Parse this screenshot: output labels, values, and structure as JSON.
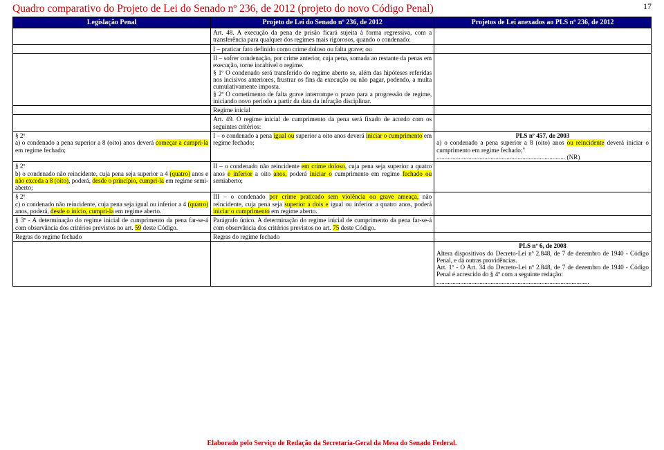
{
  "page_number": "17",
  "doc_title": "Quadro comparativo do Projeto de Lei do Senado nº 236, de 2012 (projeto do novo Código Penal)",
  "footer": "Elaborado pelo Serviço de Redação da Secretaria-Geral da Mesa do Senado Federal.",
  "colors": {
    "title": "#c00000",
    "header_bg": "#000080",
    "header_fg": "#ffffff",
    "highlight": "#ffff00",
    "border": "#000000",
    "text": "#000000",
    "background": "#ffffff"
  },
  "columns": {
    "widths_pct": [
      31,
      35,
      34
    ],
    "headers": [
      "Legislação Penal",
      "Projeto de Lei do Senado nº 236, de 2012",
      "Projetos de Lei anexados ao PLS nº 236, de 2012"
    ]
  },
  "rows": [
    {
      "c1": "",
      "c2": "Art. 48. A execução da pena de prisão ficará sujeita à forma regressiva, com a transferência para qualquer dos regimes mais rigorosos, quando o condenado:",
      "c3": ""
    },
    {
      "c1": "",
      "c2": "I – praticar fato definido como crime doloso ou falta grave; ou",
      "c3": ""
    },
    {
      "c1": "",
      "c2_parts": [
        {
          "t": "II – sofrer condenação, por crime anterior, cuja pena, somada ao restante da penas em execução, torne incabível o regime."
        },
        {
          "t": "§ 1º O condenado será transferido do regime aberto se, além das hipóteses referidas nos incisivos anteriores, frustrar os fins da execução ou não pagar, podendo, a multa cumulativamente imposta."
        },
        {
          "t": "§ 2º O cometimento de falta grave interrompe o prazo para a progressão de regime, iniciando novo período a partir da data da infração disciplinar."
        }
      ],
      "c3": ""
    },
    {
      "c1": "",
      "c2": "Regime inicial",
      "c3": ""
    },
    {
      "c1": "",
      "c2": "Art. 49. O regime inicial de cumprimento da pena será fixado de acordo com os seguintes critérios:",
      "c3": ""
    },
    {
      "c1_parts": [
        {
          "t": "§ 2º"
        },
        {
          "t": "a) o condenado a pena superior a 8 (oito) anos deverá "
        },
        {
          "t": "começar a cumpri-la",
          "hl": true
        },
        {
          "t": " em regime fechado;"
        }
      ],
      "c2_parts": [
        {
          "t": "I – o condenado a pena "
        },
        {
          "t": "igual ou",
          "hl": true
        },
        {
          "t": " superior a oito anos deverá "
        },
        {
          "t": "iniciar o cumprimento",
          "hl": true
        },
        {
          "t": " em regime fechado;"
        }
      ],
      "c3_parts": [
        {
          "t": "PLS nº 457, de 2003",
          "center": true,
          "bold": true
        },
        {
          "t": "a) o condenado a pena superior a 8 (oito) anos "
        },
        {
          "t": "ou reincidente",
          "hl": true
        },
        {
          "t": " deverá iniciar o cumprimento em regime fechado;\""
        },
        {
          "t": "................................................................................. (NR)"
        }
      ]
    },
    {
      "c1_parts": [
        {
          "t": "§ 2º"
        },
        {
          "t": "b) o condenado não reincidente, cuja pena seja superior a 4 "
        },
        {
          "t": "(quatro)",
          "hl": true
        },
        {
          "t": " anos e "
        },
        {
          "t": "não exceda a 8 (oito)",
          "hl": true
        },
        {
          "t": ", poderá, "
        },
        {
          "t": "desde o princípio, cumpri-la",
          "hl": true
        },
        {
          "t": " em regime semi-aberto;"
        }
      ],
      "c2_parts": [
        {
          "t": "II – o condenado não reincidente "
        },
        {
          "t": "em crime doloso",
          "hl": true
        },
        {
          "t": ", cuja pena seja superior a quatro anos "
        },
        {
          "t": "e inferior",
          "hl": true
        },
        {
          "t": " a oito "
        },
        {
          "t": "anos,",
          "hl": true
        },
        {
          "t": " poderá "
        },
        {
          "t": "iniciar o",
          "hl": true
        },
        {
          "t": " cumprimento em regime "
        },
        {
          "t": "fechado ou",
          "hl": true
        },
        {
          "t": " semiaberto;"
        }
      ],
      "c3": ""
    },
    {
      "c1_parts": [
        {
          "t": "§ 2º"
        },
        {
          "t": "c) o condenado não reincidente, cuja pena seja igual ou inferior a 4 "
        },
        {
          "t": "(quatro)",
          "hl": true
        },
        {
          "t": " anos, poderá, "
        },
        {
          "t": "desde o início, cumpri-la",
          "hl": true
        },
        {
          "t": " em regime aberto."
        }
      ],
      "c2_parts": [
        {
          "t": "III – o condenado "
        },
        {
          "t": "por crime praticado sem violência ou grave ameaça,",
          "hl": true
        },
        {
          "t": " não reincidente, cuja pena seja "
        },
        {
          "t": "superior a dois e",
          "hl": true
        },
        {
          "t": " igual ou inferior a quatro anos, poderá "
        },
        {
          "t": "iniciar o cumprimento",
          "hl": true
        },
        {
          "t": " em regime aberto."
        }
      ],
      "c3": ""
    },
    {
      "c1_parts": [
        {
          "t": "§ 3º - A determinação do regime inicial de cumprimento da pena far-se-á com observância dos critérios previstos no art. "
        },
        {
          "t": "59",
          "hl": true
        },
        {
          "t": " deste Código."
        }
      ],
      "c2_parts": [
        {
          "t": "Parágrafo único. A determinação do regime inicial de cumprimento da pena far-se-á com observância dos critérios previstos no art. "
        },
        {
          "t": "75",
          "hl": true
        },
        {
          "t": " deste Código."
        }
      ],
      "c3": ""
    },
    {
      "c1": "Regras do regime fechado",
      "c2": "Regras do regime fechado",
      "c3": ""
    },
    {
      "c1": "",
      "c2": "",
      "c3_parts": [
        {
          "t": "PLS nº 6, de 2008",
          "center": true,
          "bold": true
        },
        {
          "t": "Altera dispositivos do Decreto-Lei nº 2.848, de 7 de dezembro de 1940 - Código Penal, e dá outras providências."
        },
        {
          "t": "Art. 1º - O Art. 34 do Decreto-Lei nº 2.848, de 7 de dezembro de 1940 - Código Penal é acrescido do § 4º com a seguinte redação:"
        },
        {
          "t": "................................................................................................"
        }
      ]
    }
  ]
}
